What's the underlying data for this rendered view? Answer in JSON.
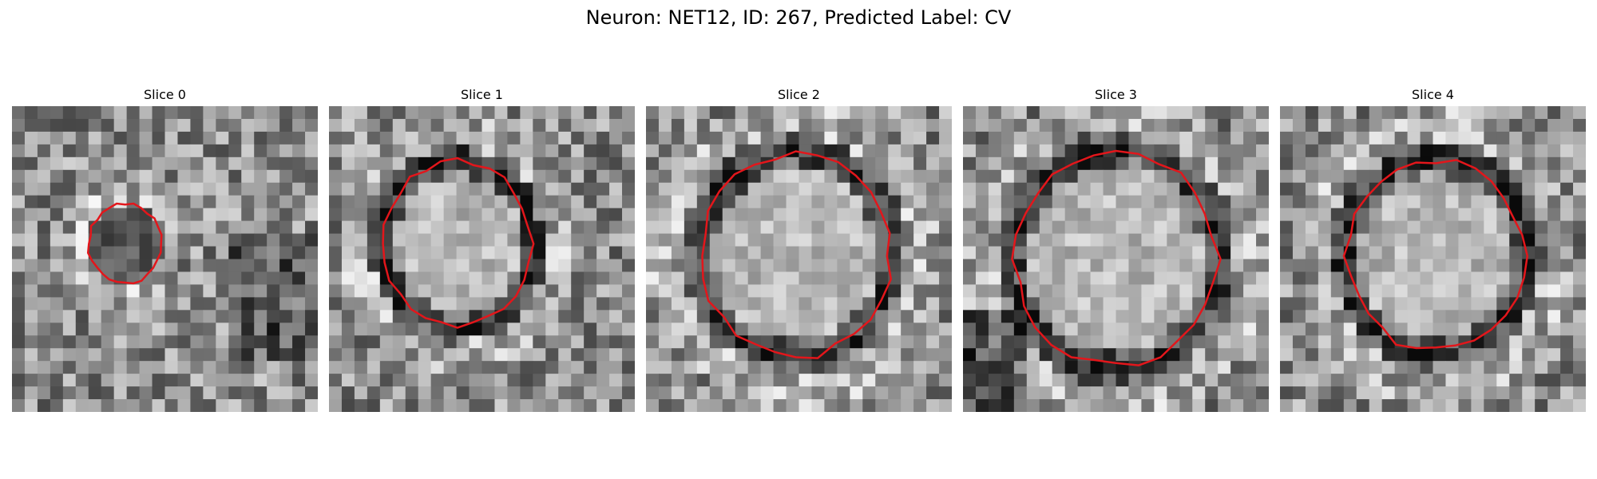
{
  "figure": {
    "title": "Neuron: NET12, ID: 267, Predicted Label: CV",
    "contour_color": "#e3161b",
    "colormap": "gray"
  },
  "panels": [
    {
      "title": "Slice 0",
      "shape": "small-dark-blob",
      "center": [
        0.37,
        0.45
      ],
      "radius": [
        0.12,
        0.13
      ],
      "ring_darkness": 0.35,
      "interior": "dark"
    },
    {
      "title": "Slice 1",
      "shape": "bright-nucleus-dark-ring",
      "center": [
        0.42,
        0.45
      ],
      "radius": [
        0.24,
        0.27
      ],
      "ring_darkness": 0.55,
      "interior": "bright"
    },
    {
      "title": "Slice 2",
      "shape": "bright-nucleus-dark-ring",
      "center": [
        0.49,
        0.49
      ],
      "radius": [
        0.31,
        0.33
      ],
      "ring_darkness": 0.45,
      "interior": "bright"
    },
    {
      "title": "Slice 3",
      "shape": "bright-nucleus-dark-ring",
      "center": [
        0.5,
        0.5
      ],
      "radius": [
        0.33,
        0.35
      ],
      "ring_darkness": 0.4,
      "interior": "bright"
    },
    {
      "title": "Slice 4",
      "shape": "bright-nucleus-dark-ring",
      "center": [
        0.51,
        0.49
      ],
      "radius": [
        0.29,
        0.31
      ],
      "ring_darkness": 0.45,
      "interior": "bright"
    }
  ]
}
